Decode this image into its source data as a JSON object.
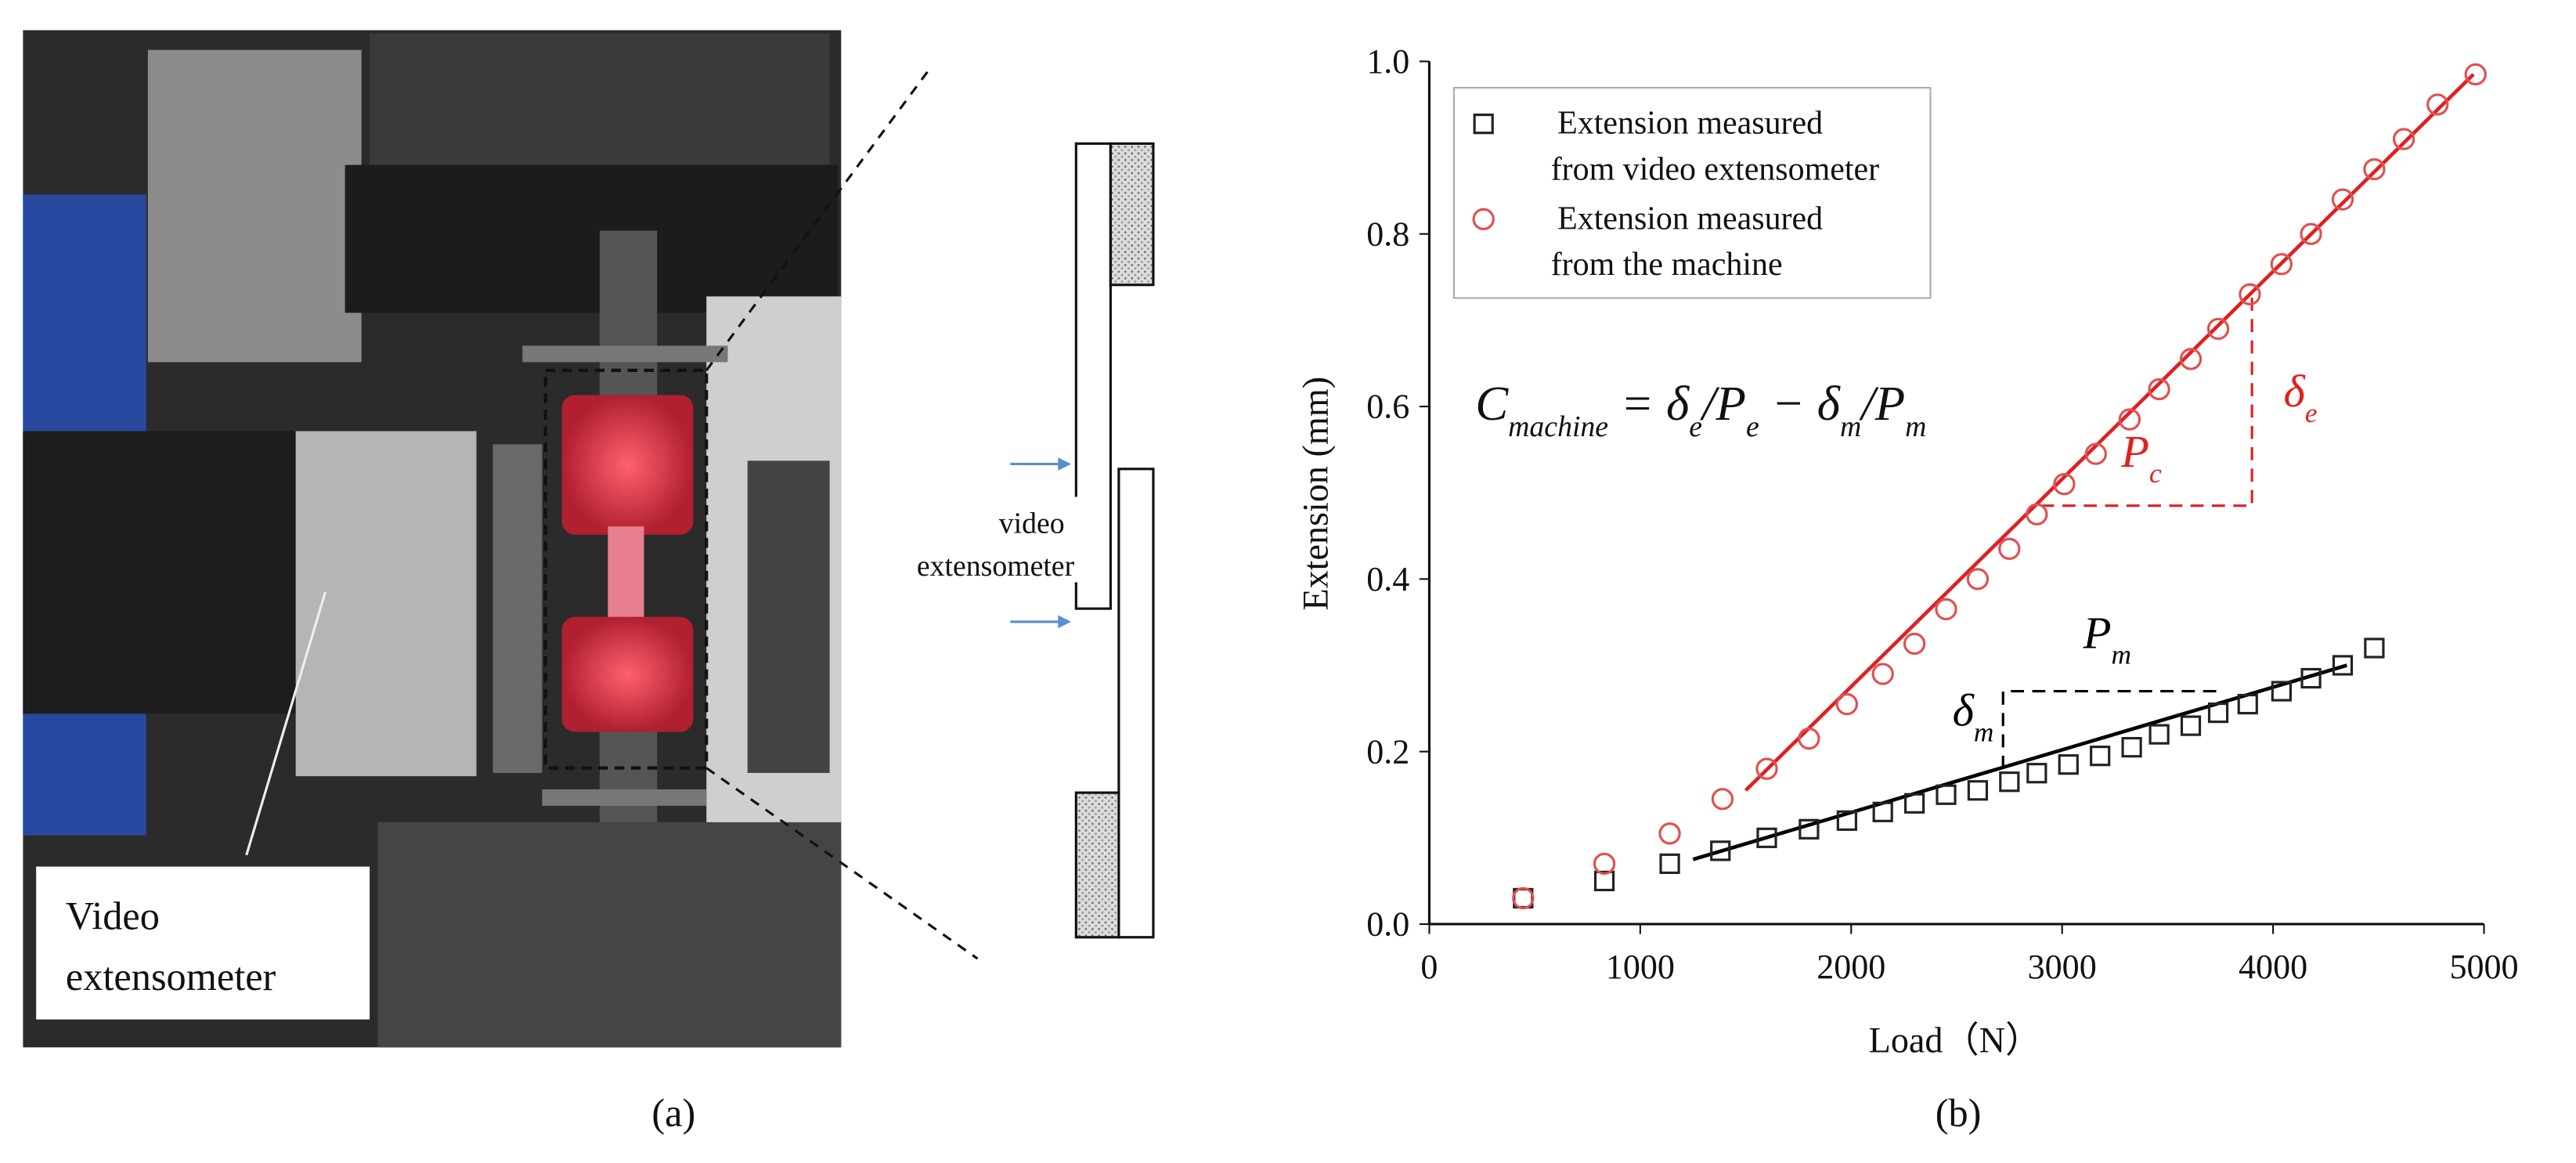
{
  "panels": {
    "a": {
      "label": "(a)",
      "photo_caption": [
        "Video",
        "extensometer"
      ],
      "schematic_caption": [
        "video",
        "extensometer"
      ]
    },
    "b": {
      "label": "(b)"
    }
  },
  "chart_data": {
    "type": "scatter",
    "xlabel": "Load（N）",
    "ylabel": "Extension (mm)",
    "xlim": [
      0,
      5000
    ],
    "xticks": [
      0,
      1000,
      2000,
      3000,
      4000,
      5000
    ],
    "ylim": [
      0,
      1
    ],
    "yticks": [
      {
        "value": 0,
        "label": "0.0"
      },
      0.2,
      0.4,
      0.6,
      0.8,
      {
        "value": 1,
        "label": "1.0"
      }
    ],
    "legend": "top-left",
    "series": [
      {
        "name": [
          "Extension measured",
          "from video extensometer"
        ],
        "marker": "square",
        "color": "#222222",
        "x": [
          445,
          830,
          1140,
          1380,
          1600,
          1800,
          1980,
          2150,
          2300,
          2450,
          2600,
          2750,
          2880,
          3030,
          3180,
          3330,
          3460,
          3610,
          3740,
          3880,
          4040,
          4180,
          4330,
          4480
        ],
        "values": [
          0.03,
          0.05,
          0.07,
          0.085,
          0.1,
          0.11,
          0.12,
          0.13,
          0.14,
          0.15,
          0.155,
          0.165,
          0.175,
          0.185,
          0.195,
          0.205,
          0.22,
          0.23,
          0.245,
          0.255,
          0.27,
          0.285,
          0.3,
          0.32
        ]
      },
      {
        "name": [
          "Extension measured",
          "from the machine"
        ],
        "marker": "circle",
        "color": "#e05050",
        "x": [
          445,
          830,
          1140,
          1390,
          1600,
          1800,
          1980,
          2150,
          2300,
          2450,
          2600,
          2750,
          2880,
          3010,
          3160,
          3320,
          3460,
          3610,
          3740,
          3890,
          4040,
          4180,
          4330,
          4480,
          4620,
          4780,
          4960
        ],
        "values": [
          0.03,
          0.07,
          0.105,
          0.145,
          0.18,
          0.215,
          0.255,
          0.29,
          0.325,
          0.365,
          0.4,
          0.435,
          0.475,
          0.51,
          0.545,
          0.585,
          0.62,
          0.655,
          0.69,
          0.73,
          0.765,
          0.8,
          0.84,
          0.875,
          0.91,
          0.95,
          0.985
        ]
      }
    ],
    "fit_lines": [
      {
        "color": "#e02020",
        "x": [
          1500,
          4950
        ],
        "values": [
          0.155,
          0.985
        ]
      },
      {
        "color": "#000000",
        "x": [
          1250,
          4350
        ],
        "values": [
          0.075,
          0.3
        ]
      }
    ],
    "guides": [
      {
        "color": "#e02020",
        "x": [
          2900,
          3900,
          3900
        ],
        "values": [
          0.485,
          0.485,
          0.73
        ]
      },
      {
        "color": "#000000",
        "x": [
          2720,
          2720,
          3750
        ],
        "values": [
          0.18,
          0.27,
          0.27
        ]
      }
    ],
    "annotations": [
      {
        "t": "P",
        "sub": "c",
        "color": "#e02020",
        "x": 3280,
        "y": 0.53
      },
      {
        "t": "δ",
        "sub": "e",
        "color": "#e02020",
        "x": 4050,
        "y": 0.6
      },
      {
        "t": "P",
        "sub": "m",
        "color": "#000000",
        "x": 3100,
        "y": 0.32
      },
      {
        "t": "δ",
        "sub": "m",
        "color": "#000000",
        "x": 2480,
        "y": 0.23
      }
    ],
    "formula": [
      {
        "t": "C",
        "sub": "machine"
      },
      {
        "t": " = δ",
        "sub": "e"
      },
      {
        "t": "/P",
        "sub": "e"
      },
      {
        "t": " − δ",
        "sub": "m"
      },
      {
        "t": "/P",
        "sub": "m"
      }
    ]
  }
}
